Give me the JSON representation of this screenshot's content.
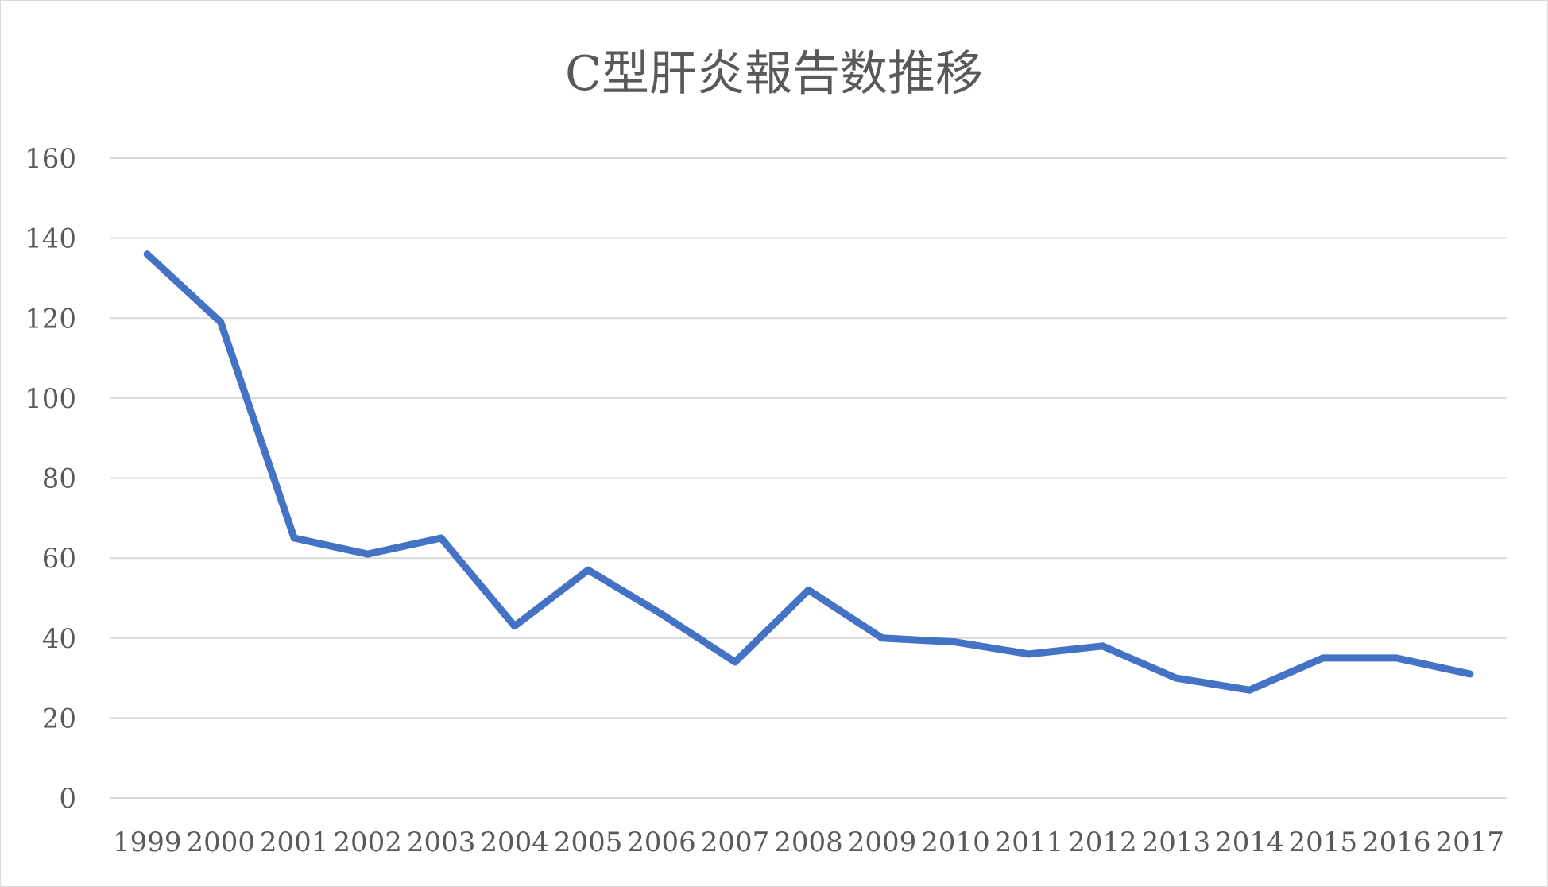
{
  "chart_data": {
    "type": "line",
    "title": "C型肝炎報告数推移",
    "xlabel": "",
    "ylabel": "",
    "categories": [
      "1999",
      "2000",
      "2001",
      "2002",
      "2003",
      "2004",
      "2005",
      "2006",
      "2007",
      "2008",
      "2009",
      "2010",
      "2011",
      "2012",
      "2013",
      "2014",
      "2015",
      "2016",
      "2017"
    ],
    "series": [
      {
        "values": [
          136,
          119,
          65,
          61,
          65,
          43,
          57,
          46,
          34,
          52,
          40,
          39,
          36,
          38,
          30,
          27,
          35,
          35,
          31
        ],
        "color": "#4472c4"
      }
    ],
    "ylim": [
      0,
      160
    ],
    "yticks": [
      0,
      20,
      40,
      60,
      80,
      100,
      120,
      140,
      160
    ],
    "grid": true,
    "legend": "none",
    "gridline_color": "#d9d9d9",
    "text_color": "#595959"
  }
}
